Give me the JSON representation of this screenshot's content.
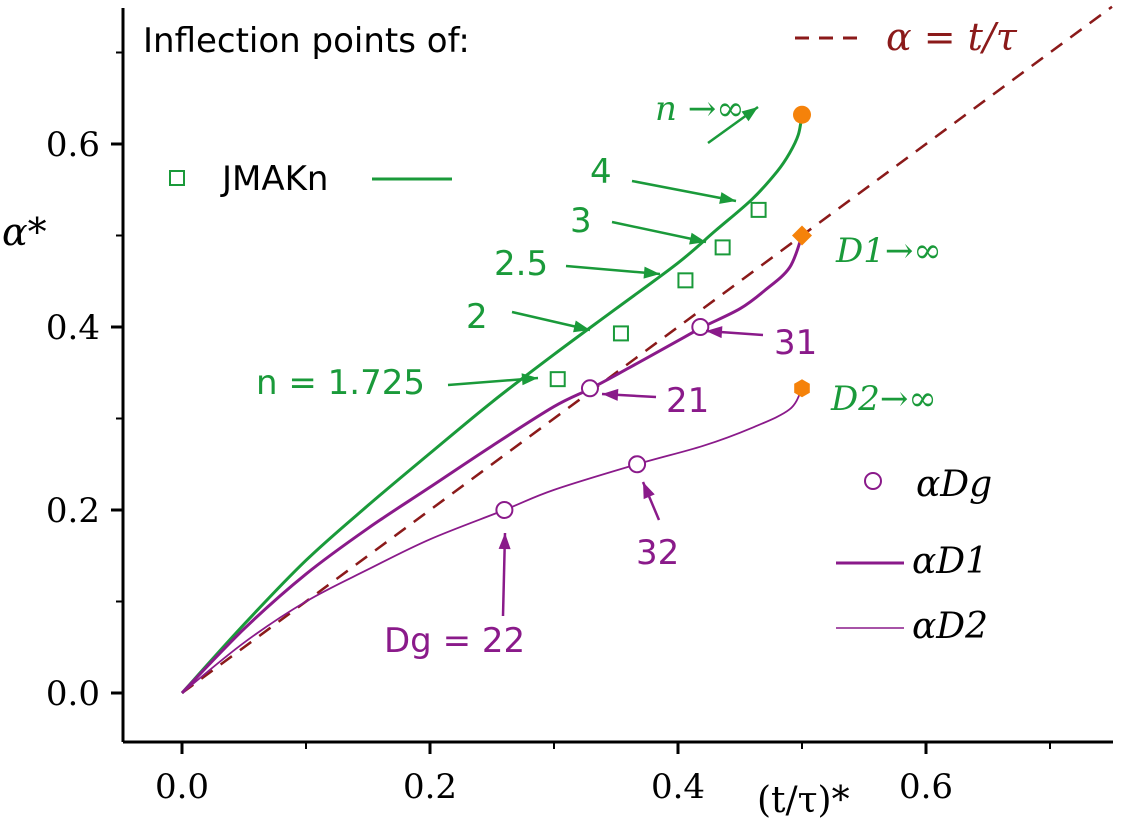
{
  "chart_data": {
    "type": "line",
    "title": "Inflection points of:",
    "xlabel": "(t/τ)*",
    "ylabel": "α*",
    "xlim": [
      -0.05,
      0.75
    ],
    "ylim": [
      -0.05,
      0.75
    ],
    "x_ticks": [
      0.0,
      0.2,
      0.4,
      0.6
    ],
    "y_ticks": [
      0.0,
      0.2,
      0.4,
      0.6
    ],
    "x_tick_labels": [
      "0.0",
      "0.2",
      "0.4",
      "0.6"
    ],
    "y_tick_labels": [
      "0.0",
      "0.2",
      "0.4",
      "0.6"
    ],
    "grid": false,
    "colors": {
      "jmakn": "#1a9a3a",
      "d": "#8a1a8a",
      "reference": "#8b1a1a",
      "limit_points": "#f5820a"
    },
    "series": [
      {
        "name": "α = t/τ",
        "style": "dashed",
        "points": [
          [
            0.0,
            0.0
          ],
          [
            0.75,
            0.75
          ]
        ]
      },
      {
        "name": "JMAKn",
        "style": "solid",
        "points": [
          [
            0.0,
            0.0
          ],
          [
            0.05,
            0.075
          ],
          [
            0.1,
            0.145
          ],
          [
            0.15,
            0.205
          ],
          [
            0.2,
            0.262
          ],
          [
            0.25,
            0.318
          ],
          [
            0.3,
            0.37
          ],
          [
            0.35,
            0.42
          ],
          [
            0.4,
            0.47
          ],
          [
            0.43,
            0.505
          ],
          [
            0.46,
            0.54
          ],
          [
            0.48,
            0.57
          ],
          [
            0.49,
            0.59
          ],
          [
            0.497,
            0.61
          ],
          [
            0.5,
            0.632
          ]
        ]
      },
      {
        "name": "αD1",
        "style": "solid",
        "points": [
          [
            0.0,
            0.0
          ],
          [
            0.05,
            0.07
          ],
          [
            0.1,
            0.13
          ],
          [
            0.15,
            0.18
          ],
          [
            0.2,
            0.225
          ],
          [
            0.25,
            0.27
          ],
          [
            0.3,
            0.313
          ],
          [
            0.33,
            0.333
          ],
          [
            0.36,
            0.355
          ],
          [
            0.4,
            0.385
          ],
          [
            0.42,
            0.4
          ],
          [
            0.45,
            0.42
          ],
          [
            0.47,
            0.44
          ],
          [
            0.49,
            0.465
          ],
          [
            0.5,
            0.5
          ]
        ]
      },
      {
        "name": "αD2",
        "style": "solid",
        "points": [
          [
            0.0,
            0.0
          ],
          [
            0.05,
            0.055
          ],
          [
            0.1,
            0.1
          ],
          [
            0.15,
            0.135
          ],
          [
            0.2,
            0.168
          ],
          [
            0.26,
            0.2
          ],
          [
            0.3,
            0.222
          ],
          [
            0.367,
            0.25
          ],
          [
            0.42,
            0.27
          ],
          [
            0.46,
            0.29
          ],
          [
            0.49,
            0.31
          ],
          [
            0.5,
            0.333
          ]
        ]
      }
    ],
    "jmakn_inflection_points": [
      {
        "label": "n = 1.725",
        "x": 0.303,
        "y": 0.343
      },
      {
        "label": "2",
        "x": 0.354,
        "y": 0.393
      },
      {
        "label": "2.5",
        "x": 0.406,
        "y": 0.451
      },
      {
        "label": "3",
        "x": 0.436,
        "y": 0.487
      },
      {
        "label": "4",
        "x": 0.465,
        "y": 0.528
      }
    ],
    "dg_inflection_points": [
      {
        "label": "Dg = 22",
        "x": 0.26,
        "y": 0.2
      },
      {
        "label": "32",
        "x": 0.367,
        "y": 0.25
      },
      {
        "label": "21",
        "x": 0.329,
        "y": 0.333
      },
      {
        "label": "31",
        "x": 0.418,
        "y": 0.4
      }
    ],
    "limit_points": [
      {
        "label": "n →∞",
        "x": 0.5,
        "y": 0.632,
        "shape": "circle"
      },
      {
        "label": "D1→∞",
        "x": 0.5,
        "y": 0.5,
        "shape": "diamond"
      },
      {
        "label": "D2→∞",
        "x": 0.5,
        "y": 0.333,
        "shape": "hexagon"
      }
    ],
    "legend": [
      {
        "label": "JMAKn",
        "marker": "square",
        "line": "solid"
      },
      {
        "label": "αDg",
        "marker": "circle",
        "line": "none"
      },
      {
        "label": "αD1",
        "marker": "none",
        "line": "solid"
      },
      {
        "label": "αD2",
        "marker": "none",
        "line": "thin"
      }
    ]
  }
}
